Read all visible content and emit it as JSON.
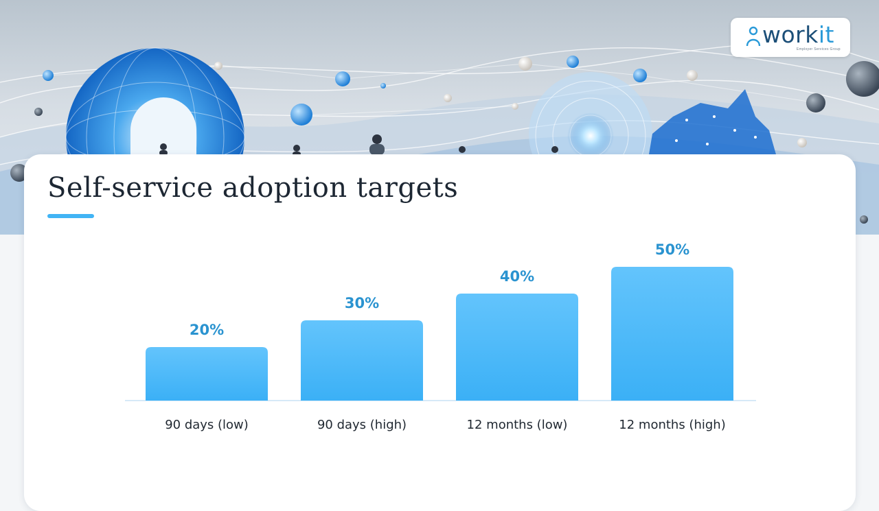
{
  "brand": {
    "name_main": "work",
    "name_accent": "it",
    "tagline": "Employer Services Group"
  },
  "page": {
    "title": "Self-service adoption targets"
  },
  "colors": {
    "accent": "#41b4f5",
    "bar_top": "#63c4fc",
    "bar_bottom": "#3bb0f6",
    "value_label": "#2a93d0"
  },
  "chart_data": {
    "type": "bar",
    "categories": [
      "90 days (low)",
      "90 days (high)",
      "12 months (low)",
      "12 months (high)"
    ],
    "values": [
      20,
      30,
      40,
      50
    ],
    "value_labels": [
      "20%",
      "30%",
      "40%",
      "50%"
    ],
    "ylim": [
      0,
      50
    ],
    "grid": false,
    "legend": "none"
  }
}
